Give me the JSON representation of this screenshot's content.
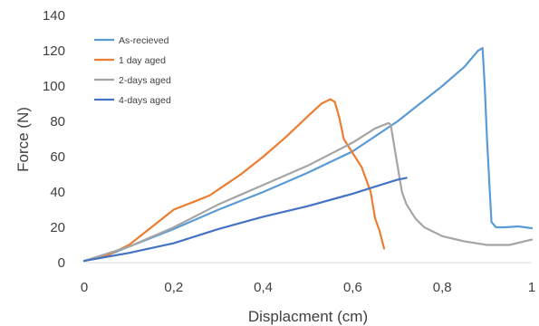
{
  "chart_data": {
    "type": "line",
    "xlabel": "Displacment (cm)",
    "ylabel": "Force (N)",
    "xlim": [
      0,
      1
    ],
    "ylim": [
      0,
      140
    ],
    "xticks": [
      0,
      0.2,
      0.4,
      0.6,
      0.8,
      1
    ],
    "xtick_labels": [
      "0",
      "0,2",
      "0,4",
      "0,6",
      "0,8",
      "1"
    ],
    "yticks": [
      0,
      20,
      40,
      60,
      80,
      100,
      120,
      140
    ],
    "ytick_labels": [
      "0",
      "20",
      "40",
      "60",
      "80",
      "100",
      "120",
      "140"
    ],
    "grid": false,
    "legend_position": "top-left",
    "series": [
      {
        "name": "As-recieved",
        "color": "#5B9BD5",
        "points": [
          [
            0,
            1
          ],
          [
            0.05,
            4
          ],
          [
            0.1,
            9
          ],
          [
            0.2,
            19
          ],
          [
            0.3,
            30
          ],
          [
            0.4,
            40
          ],
          [
            0.5,
            51
          ],
          [
            0.6,
            63
          ],
          [
            0.7,
            80
          ],
          [
            0.8,
            100
          ],
          [
            0.85,
            111
          ],
          [
            0.88,
            120
          ],
          [
            0.89,
            121.5
          ],
          [
            0.895,
            100
          ],
          [
            0.9,
            70
          ],
          [
            0.91,
            23
          ],
          [
            0.92,
            20
          ],
          [
            0.94,
            20
          ],
          [
            0.97,
            20.5
          ],
          [
            1,
            19.5
          ]
        ]
      },
      {
        "name": "1 day aged",
        "color": "#ED7D31",
        "points": [
          [
            0,
            1
          ],
          [
            0.05,
            4
          ],
          [
            0.1,
            10
          ],
          [
            0.15,
            20
          ],
          [
            0.2,
            30
          ],
          [
            0.25,
            35
          ],
          [
            0.28,
            38
          ],
          [
            0.35,
            50
          ],
          [
            0.4,
            60
          ],
          [
            0.45,
            71
          ],
          [
            0.5,
            83
          ],
          [
            0.53,
            90
          ],
          [
            0.55,
            92.5
          ],
          [
            0.56,
            91
          ],
          [
            0.57,
            82
          ],
          [
            0.58,
            70
          ],
          [
            0.6,
            62
          ],
          [
            0.62,
            54
          ],
          [
            0.64,
            40
          ],
          [
            0.65,
            25
          ],
          [
            0.66,
            18
          ],
          [
            0.67,
            8
          ]
        ]
      },
      {
        "name": "2-days aged",
        "color": "#A5A5A5",
        "points": [
          [
            0,
            1
          ],
          [
            0.1,
            9
          ],
          [
            0.2,
            20
          ],
          [
            0.3,
            33
          ],
          [
            0.4,
            44
          ],
          [
            0.5,
            55
          ],
          [
            0.6,
            68
          ],
          [
            0.65,
            76
          ],
          [
            0.68,
            79
          ],
          [
            0.685,
            78
          ],
          [
            0.69,
            70
          ],
          [
            0.7,
            55
          ],
          [
            0.71,
            40
          ],
          [
            0.72,
            33
          ],
          [
            0.74,
            25
          ],
          [
            0.76,
            20
          ],
          [
            0.8,
            15
          ],
          [
            0.85,
            12
          ],
          [
            0.9,
            10
          ],
          [
            0.95,
            10
          ],
          [
            1,
            13
          ]
        ]
      },
      {
        "name": "4-days aged",
        "color": "#4472C4",
        "points": [
          [
            0,
            1
          ],
          [
            0.1,
            5.5
          ],
          [
            0.2,
            11
          ],
          [
            0.3,
            19
          ],
          [
            0.4,
            26
          ],
          [
            0.5,
            32
          ],
          [
            0.6,
            39
          ],
          [
            0.65,
            43
          ],
          [
            0.7,
            47
          ],
          [
            0.72,
            48
          ]
        ]
      }
    ]
  }
}
